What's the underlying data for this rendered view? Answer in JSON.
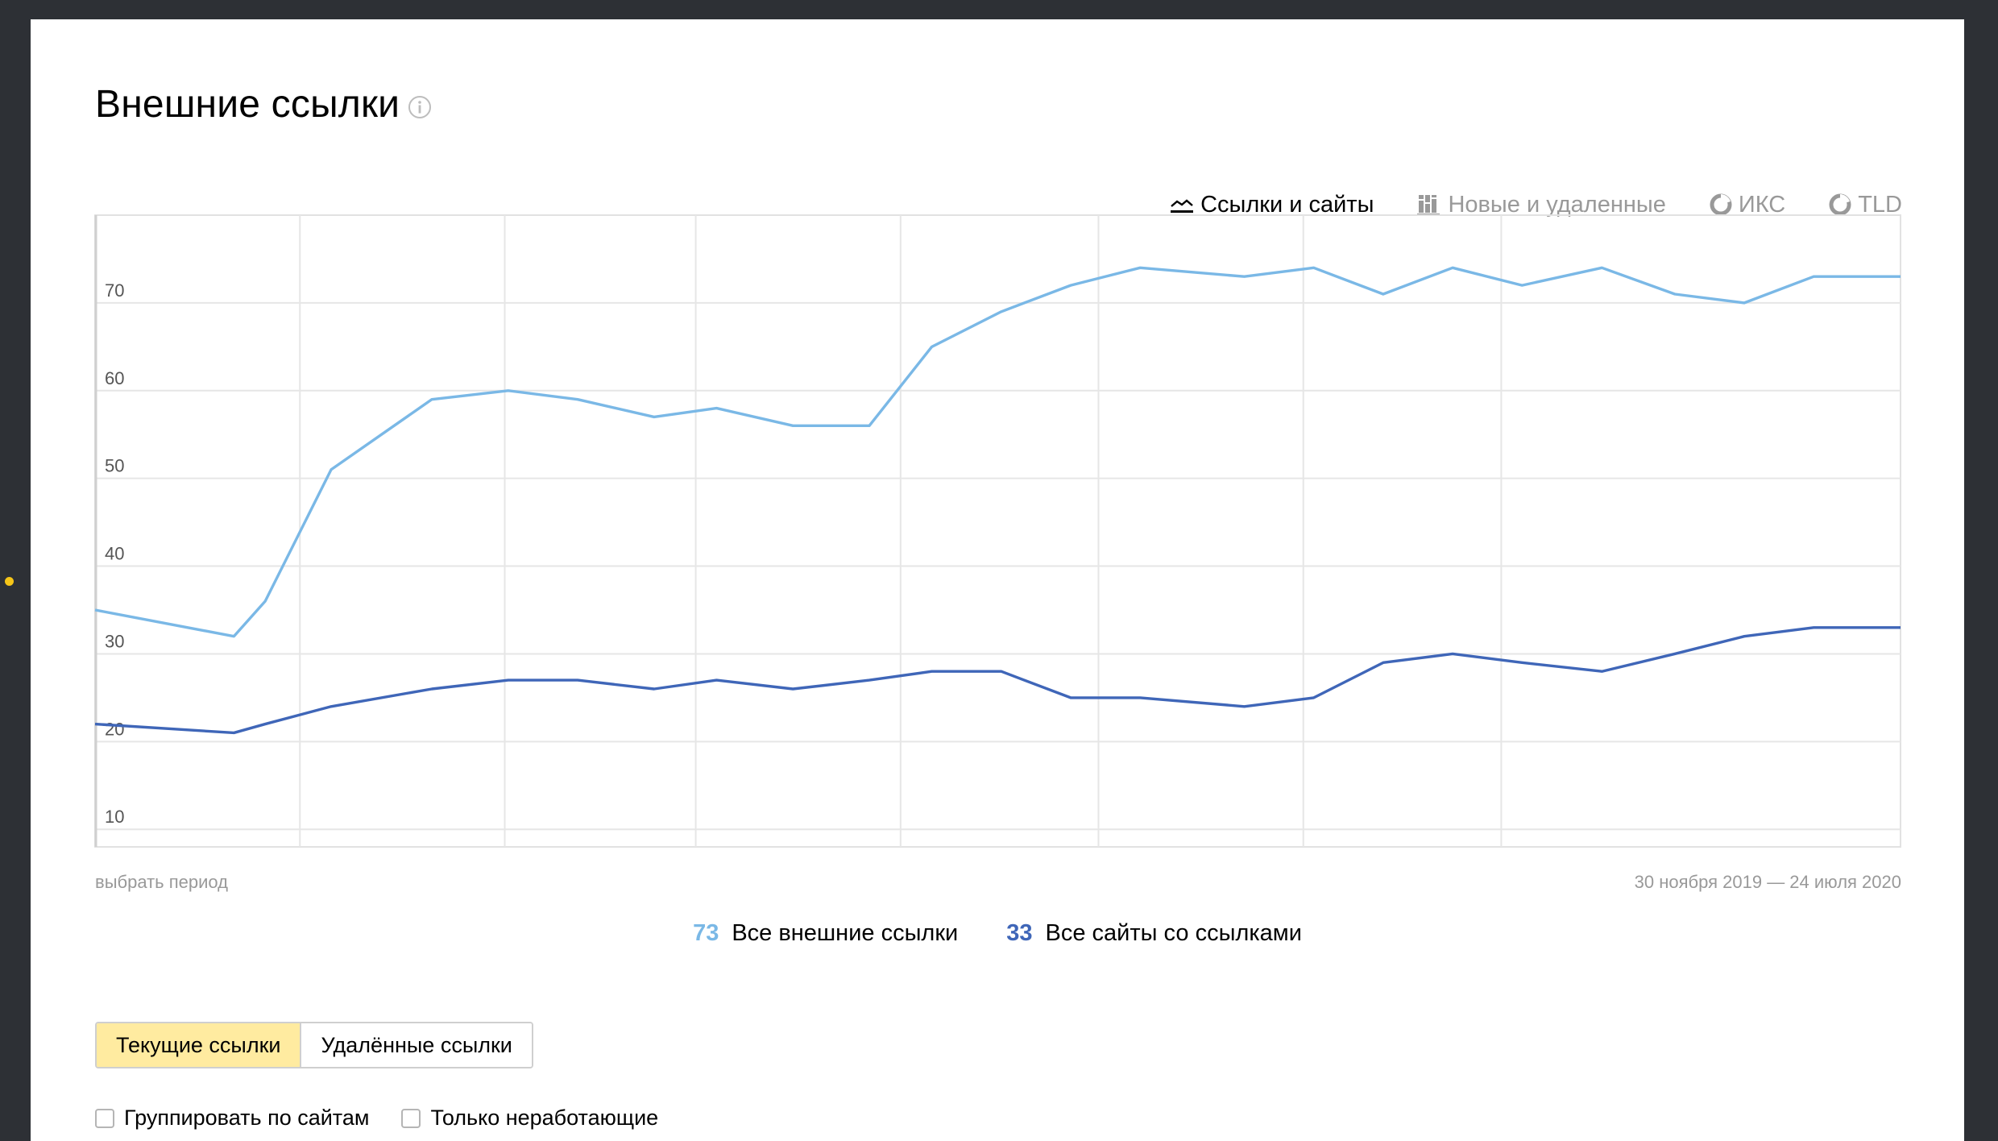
{
  "page": {
    "title": "Внешние ссылки",
    "info_icon": "info-icon",
    "accent_yellow": "#f5c518"
  },
  "chart_tabs": [
    {
      "label": "Ссылки и сайты",
      "icon": "line-chart-icon",
      "active": true
    },
    {
      "label": "Новые и удаленные",
      "icon": "bar-chart-icon",
      "active": false
    },
    {
      "label": "ИКС",
      "icon": "pie-chart-icon",
      "active": false
    },
    {
      "label": "TLD",
      "icon": "pie-chart-icon",
      "active": false
    }
  ],
  "period": {
    "select_label": "выбрать период",
    "range": "30 ноября 2019 — 24 июля 2020"
  },
  "chart_data": {
    "type": "line",
    "title": "",
    "xlabel": "",
    "ylabel": "",
    "ylim": [
      8,
      80
    ],
    "yticks": [
      10,
      20,
      30,
      40,
      50,
      60,
      70
    ],
    "grid": true,
    "x_points": 27,
    "series": [
      {
        "name": "Все внешние ссылки",
        "color": "#7ab8e6",
        "values": [
          35,
          32,
          36,
          51,
          59,
          60,
          59,
          57,
          58,
          56,
          56,
          65,
          69,
          72,
          74,
          73,
          74,
          71,
          74,
          72,
          74,
          71,
          70,
          73,
          73
        ]
      },
      {
        "name": "Все сайты со ссылками",
        "color": "#3f66b8",
        "values": [
          22,
          21,
          22,
          24,
          26,
          27,
          27,
          26,
          27,
          26,
          27,
          28,
          28,
          25,
          25,
          24,
          25,
          29,
          30,
          29,
          28,
          30,
          32,
          33,
          33
        ]
      }
    ],
    "x_index": [
      0,
      2,
      2.45,
      3.4,
      4.85,
      5.95,
      6.95,
      8.05,
      8.95,
      10.05,
      11.15,
      12.05,
      13.05,
      14.05,
      15.05,
      16.55,
      17.55,
      18.55,
      19.55,
      20.55,
      21.7,
      22.75,
      23.75,
      24.75,
      26
    ]
  },
  "legend": [
    {
      "value": "73",
      "label": "Все внешние ссылки",
      "color": "#7ab8e6"
    },
    {
      "value": "33",
      "label": "Все сайты со ссылками",
      "color": "#3f66b8"
    }
  ],
  "toggle": {
    "current_label": "Текущие ссылки",
    "deleted_label": "Удалённые ссылки",
    "selected": "current"
  },
  "filters": {
    "group_by_sites_label": "Группировать по сайтам",
    "only_broken_label": "Только неработающие"
  }
}
